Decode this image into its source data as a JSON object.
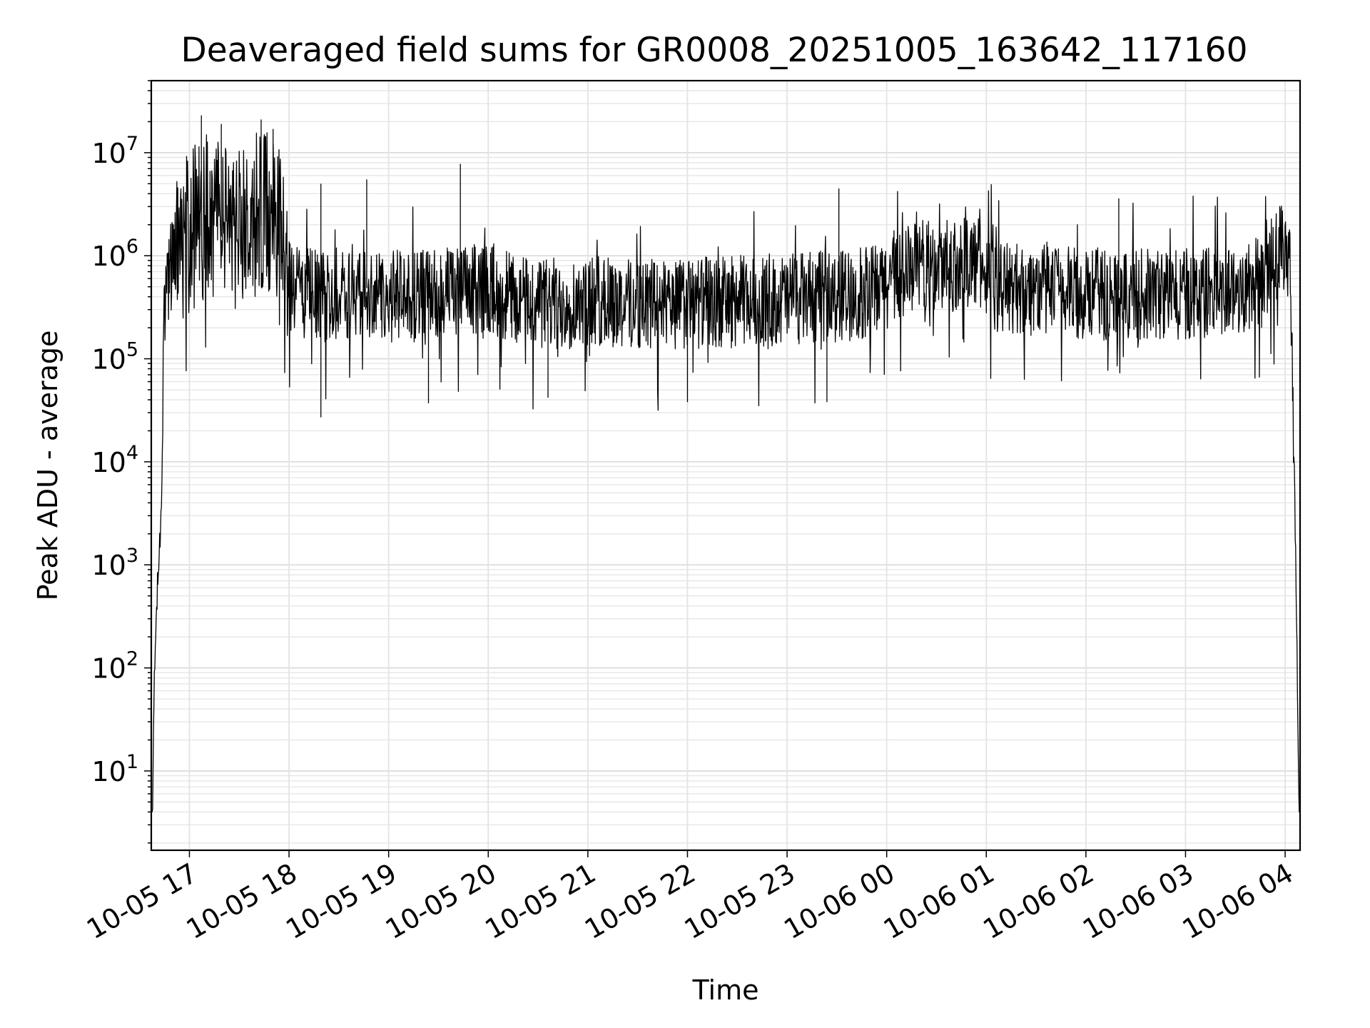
{
  "chart_data": {
    "type": "line",
    "title": "Deaveraged field sums for GR0008_20251005_163642_117160",
    "xlabel": "Time",
    "ylabel": "Peak ADU - average",
    "yscale": "log",
    "ylim": [
      1.7,
      50000000
    ],
    "xlim_hours": [
      16.617,
      28.15
    ],
    "grid": true,
    "line_color": "#000000",
    "x_ticks": [
      {
        "label": "10-05 17",
        "hour": 17
      },
      {
        "label": "10-05 18",
        "hour": 18
      },
      {
        "label": "10-05 19",
        "hour": 19
      },
      {
        "label": "10-05 20",
        "hour": 20
      },
      {
        "label": "10-05 21",
        "hour": 21
      },
      {
        "label": "10-05 22",
        "hour": 22
      },
      {
        "label": "10-05 23",
        "hour": 23
      },
      {
        "label": "10-06 00",
        "hour": 24
      },
      {
        "label": "10-06 01",
        "hour": 25
      },
      {
        "label": "10-06 02",
        "hour": 26
      },
      {
        "label": "10-06 03",
        "hour": 27
      },
      {
        "label": "10-06 04",
        "hour": 28
      }
    ],
    "y_ticks": [
      {
        "base": "10",
        "exp": "1",
        "value": 10
      },
      {
        "base": "10",
        "exp": "2",
        "value": 100
      },
      {
        "base": "10",
        "exp": "3",
        "value": 1000
      },
      {
        "base": "10",
        "exp": "4",
        "value": 10000
      },
      {
        "base": "10",
        "exp": "5",
        "value": 100000
      },
      {
        "base": "10",
        "exp": "6",
        "value": 1000000
      },
      {
        "base": "10",
        "exp": "7",
        "value": 10000000
      }
    ],
    "series": [
      {
        "name": "field sums",
        "hours": [
          16.617,
          16.63,
          16.64,
          16.66,
          16.68,
          16.7,
          16.72,
          16.74,
          16.76,
          16.78,
          16.8,
          16.85,
          16.9,
          17.0,
          17.1,
          17.2,
          17.3,
          17.4,
          17.5,
          17.6,
          17.7,
          17.8,
          17.9,
          18.0,
          18.3,
          18.5,
          18.7,
          19.0,
          19.3,
          19.5,
          19.7,
          20.0,
          20.3,
          20.6,
          21.0,
          21.5,
          22.0,
          22.5,
          23.0,
          23.5,
          23.9,
          24.1,
          24.3,
          24.5,
          24.7,
          24.9,
          25.1,
          25.5,
          26.0,
          26.5,
          27.0,
          27.5,
          27.8,
          27.95,
          28.0,
          28.05,
          28.08,
          28.1,
          28.12,
          28.14,
          28.15
        ],
        "values": [
          4,
          4,
          30,
          200,
          600,
          1500,
          4000,
          200000,
          500000,
          700000,
          800000,
          900000,
          1000000,
          1200000,
          1500000,
          1800000,
          1600000,
          1300000,
          1200000,
          1400000,
          2000000,
          1800000,
          1500000,
          600000,
          450000,
          450000,
          500000,
          450000,
          450000,
          500000,
          480000,
          550000,
          420000,
          380000,
          400000,
          380000,
          380000,
          400000,
          420000,
          450000,
          500000,
          700000,
          900000,
          850000,
          900000,
          1000000,
          550000,
          520000,
          480000,
          460000,
          480000,
          500000,
          700000,
          1300000,
          1500000,
          1000000,
          50000,
          3000,
          100,
          4,
          4
        ]
      }
    ],
    "spikes": [
      {
        "hour": 17.12,
        "value": 23000000
      },
      {
        "hour": 17.32,
        "value": 19000000
      },
      {
        "hour": 17.72,
        "value": 21000000
      },
      {
        "hour": 17.84,
        "value": 17000000
      },
      {
        "hour": 18.32,
        "value": 5000000
      },
      {
        "hour": 18.78,
        "value": 5500000
      },
      {
        "hour": 19.72,
        "value": 7800000
      },
      {
        "hour": 23.52,
        "value": 4500000
      },
      {
        "hour": 26.33,
        "value": 3600000
      },
      {
        "hour": 18.32,
        "value": 27000
      },
      {
        "hour": 19.4,
        "value": 37000
      },
      {
        "hour": 20.6,
        "value": 42000
      },
      {
        "hour": 22.0,
        "value": 38000
      },
      {
        "hour": 23.4,
        "value": 38000
      }
    ]
  }
}
